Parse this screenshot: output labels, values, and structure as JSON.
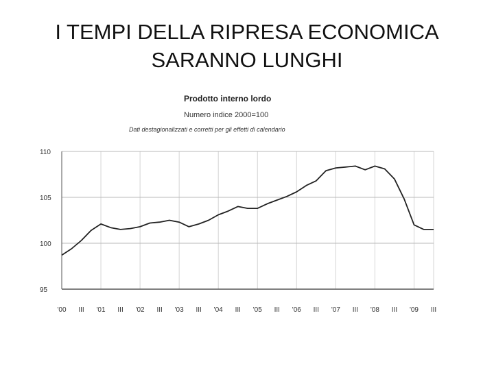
{
  "slide": {
    "title_line1": "I TEMPI DELLA RIPRESA ECONOMICA",
    "title_line2": "SARANNO LUNGHI"
  },
  "chart_data": {
    "type": "line",
    "title": "Prodotto interno lordo",
    "subtitle": "Numero indice 2000=100",
    "note": "Dati destagionalizzati e corretti per gli effetti di calendario",
    "ylim": [
      95,
      110
    ],
    "yticks": [
      95,
      100,
      105,
      110
    ],
    "grid": true,
    "x_tick_labels": [
      "'00",
      "III",
      "'01",
      "III",
      "'02",
      "III",
      "'03",
      "III",
      "'04",
      "III",
      "'05",
      "III",
      "'06",
      "III",
      "'07",
      "III",
      "'08",
      "III",
      "'09",
      "III"
    ],
    "series": [
      {
        "values": [
          98.7,
          99.4,
          100.3,
          101.4,
          102.1,
          101.7,
          101.5,
          101.6,
          101.8,
          102.2,
          102.3,
          102.5,
          102.3,
          101.8,
          102.1,
          102.5,
          103.1,
          103.5,
          104.0,
          103.8,
          103.8,
          104.3,
          104.7,
          105.1,
          105.6,
          106.3,
          106.8,
          107.9,
          108.2,
          108.3,
          108.4,
          108.0,
          108.4,
          108.1,
          107.0,
          104.8,
          102.0,
          101.5,
          101.5
        ]
      }
    ]
  }
}
